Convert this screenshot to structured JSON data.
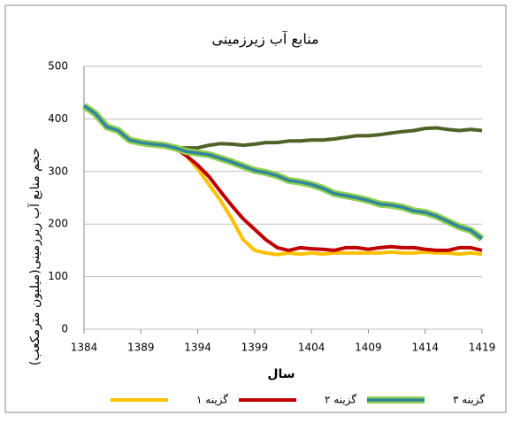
{
  "chart_data": {
    "type": "line",
    "title": "منابع آب زیرزمینی",
    "x_label": "سال",
    "y_label": "حجم منابع آب زیرزمینی(میلیون مترمکعب)",
    "x": [
      1384,
      1385,
      1386,
      1387,
      1388,
      1389,
      1390,
      1391,
      1392,
      1393,
      1394,
      1395,
      1396,
      1397,
      1398,
      1399,
      1400,
      1401,
      1402,
      1403,
      1404,
      1405,
      1406,
      1407,
      1408,
      1409,
      1410,
      1411,
      1412,
      1413,
      1414,
      1415,
      1416,
      1417,
      1418,
      1419
    ],
    "xlim": [
      1384,
      1419
    ],
    "xticks": [
      1384,
      1389,
      1394,
      1399,
      1404,
      1409,
      1414,
      1419
    ],
    "ylim": [
      0,
      500
    ],
    "yticks": [
      0,
      100,
      200,
      300,
      400,
      500
    ],
    "grid": true,
    "legend": "bottom",
    "series": [
      {
        "color": "#4f6228",
        "values": [
          425,
          410,
          385,
          378,
          360,
          355,
          352,
          350,
          345,
          345,
          345,
          350,
          353,
          352,
          350,
          352,
          355,
          355,
          358,
          358,
          360,
          360,
          362,
          365,
          368,
          368,
          370,
          373,
          376,
          378,
          382,
          383,
          380,
          378,
          380,
          378
        ]
      },
      {
        "name": "گزینه ۱",
        "color": "#ffc000",
        "values": [
          425,
          410,
          385,
          378,
          360,
          355,
          352,
          350,
          345,
          330,
          305,
          275,
          245,
          210,
          170,
          150,
          145,
          142,
          145,
          143,
          145,
          143,
          145,
          145,
          145,
          145,
          145,
          147,
          145,
          145,
          147,
          145,
          145,
          143,
          145,
          143
        ]
      },
      {
        "name": "گزینه ۲",
        "color": "#c00000",
        "values": [
          425,
          410,
          385,
          378,
          360,
          355,
          352,
          350,
          345,
          330,
          312,
          290,
          262,
          235,
          210,
          190,
          170,
          155,
          150,
          155,
          153,
          152,
          150,
          155,
          155,
          152,
          155,
          157,
          155,
          155,
          152,
          150,
          150,
          155,
          155,
          150
        ]
      },
      {
        "name": "گزینه ۳",
        "color": "#92d050",
        "inner_color": "#31859c",
        "values": [
          425,
          410,
          385,
          378,
          360,
          355,
          352,
          350,
          345,
          338,
          335,
          332,
          325,
          318,
          310,
          302,
          298,
          292,
          283,
          280,
          275,
          268,
          258,
          254,
          250,
          245,
          238,
          236,
          232,
          225,
          222,
          215,
          205,
          195,
          188,
          172
        ]
      }
    ]
  }
}
